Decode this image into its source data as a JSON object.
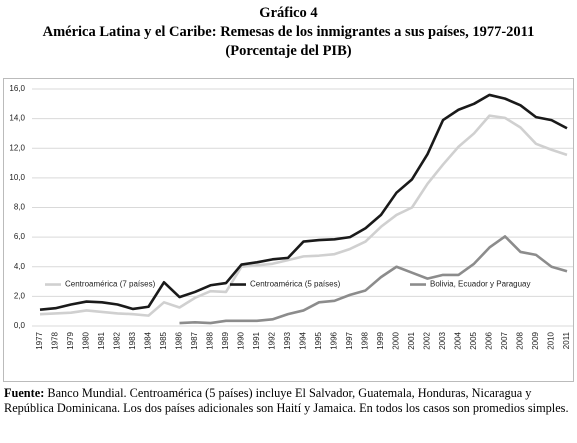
{
  "header": {
    "label": "Gráfico 4",
    "title": "América Latina y el Caribe: Remesas de los inmigrantes a sus países, 1977-2011",
    "subtitle": "(Porcentaje del PIB)"
  },
  "chart_data": {
    "type": "line",
    "categories": [
      "1977",
      "1978",
      "1979",
      "1980",
      "1981",
      "1982",
      "1983",
      "1984",
      "1985",
      "1986",
      "1987",
      "1988",
      "1989",
      "1990",
      "1991",
      "1992",
      "1993",
      "1994",
      "1995",
      "1996",
      "1997",
      "1998",
      "1999",
      "2000",
      "2001",
      "2002",
      "2003",
      "2004",
      "2005",
      "2006",
      "2007",
      "2008",
      "2009",
      "2010",
      "2011"
    ],
    "series": [
      {
        "name": "Centroamérica (7 países)",
        "color": "#d0d0d0",
        "values": [
          0.8,
          0.85,
          0.9,
          1.05,
          0.95,
          0.85,
          0.8,
          0.7,
          1.6,
          1.25,
          1.9,
          2.35,
          2.3,
          4.0,
          4.1,
          4.2,
          4.45,
          4.7,
          4.75,
          4.85,
          5.2,
          5.7,
          6.7,
          7.5,
          8.0,
          9.6,
          10.9,
          12.1,
          13.0,
          14.2,
          14.05,
          13.4,
          12.3,
          11.9,
          11.55
        ]
      },
      {
        "name": "Centroamérica (5 países)",
        "color": "#1a1a1a",
        "values": [
          1.1,
          1.2,
          1.45,
          1.65,
          1.6,
          1.45,
          1.15,
          1.3,
          2.95,
          1.95,
          2.3,
          2.75,
          2.9,
          4.15,
          4.3,
          4.5,
          4.6,
          5.7,
          5.8,
          5.85,
          6.0,
          6.6,
          7.5,
          9.0,
          9.9,
          11.6,
          13.9,
          14.6,
          15.0,
          15.6,
          15.35,
          14.9,
          14.1,
          13.9,
          13.35
        ]
      },
      {
        "name": "Bolivia, Ecuador y Paraguay",
        "color": "#8c8c8c",
        "values": [
          null,
          null,
          null,
          null,
          null,
          null,
          null,
          null,
          null,
          0.2,
          0.25,
          0.2,
          0.35,
          0.35,
          0.35,
          0.45,
          0.8,
          1.05,
          1.6,
          1.7,
          2.1,
          2.4,
          3.3,
          4.0,
          3.6,
          3.2,
          3.45,
          3.45,
          4.2,
          5.3,
          6.05,
          5.0,
          4.8,
          4.0,
          3.7
        ]
      }
    ],
    "ylim": [
      0,
      16
    ],
    "yticks": [
      {
        "value": 0,
        "label": "0,0"
      },
      {
        "value": 2,
        "label": "2,0"
      },
      {
        "value": 4,
        "label": "4,0"
      },
      {
        "value": 6,
        "label": "6,0"
      },
      {
        "value": 8,
        "label": "8,0"
      },
      {
        "value": 10,
        "label": "10,0"
      },
      {
        "value": 12,
        "label": "12,0"
      },
      {
        "value": 14,
        "label": "14,0"
      },
      {
        "value": 16,
        "label": "16,0"
      }
    ],
    "grid": true,
    "legend": "bottom"
  },
  "footnote": {
    "source_label": "Fuente:",
    "source_text": "Banco Mundial. Centroamérica (5 países) incluye El Salvador, Guatemala, Honduras, Nicaragua y República Dominicana. Los dos países adicionales son Haití y Jamaica. En todos los casos son promedios simples."
  }
}
